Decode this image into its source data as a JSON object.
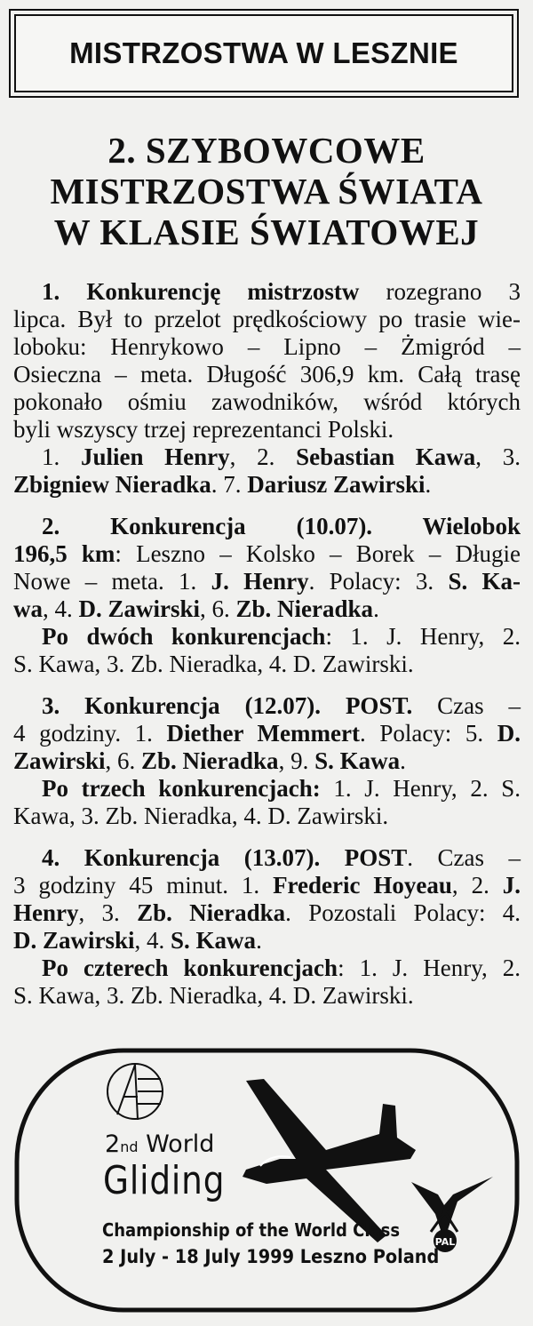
{
  "header": {
    "title": "MISTRZOSTWA W LESZNIE"
  },
  "headline": [
    "2. SZYBOWCOWE",
    "MISTRZOSTWA ŚWIATA",
    "W KLASIE ŚWIATOWEJ"
  ],
  "sections": [
    {
      "lines": [
        {
          "ind": true,
          "runs": [
            {
              "t": "1. Konkurencję mistrzostw",
              "b": true
            },
            {
              "t": " rozegrano 3"
            }
          ]
        },
        {
          "runs": [
            {
              "t": "lipca. Był to przelot prędkościowy po trasie wie-"
            }
          ]
        },
        {
          "runs": [
            {
              "t": "loboku: Henrykowo – Lipno – Żmigród –"
            }
          ]
        },
        {
          "runs": [
            {
              "t": "Osieczna – meta. Długość 306,9 km. Całą trasę"
            }
          ]
        },
        {
          "runs": [
            {
              "t": "pokonało ośmiu zawodników, wśród których"
            }
          ]
        },
        {
          "last": true,
          "runs": [
            {
              "t": "byli wszyscy trzej reprezentanci Polski."
            }
          ]
        },
        {
          "ind": true,
          "runs": [
            {
              "t": "1. "
            },
            {
              "t": "Julien Henry",
              "b": true
            },
            {
              "t": ", 2. "
            },
            {
              "t": "Sebastian Kawa",
              "b": true
            },
            {
              "t": ", 3."
            }
          ]
        },
        {
          "last": true,
          "runs": [
            {
              "t": "Zbigniew Nieradka",
              "b": true
            },
            {
              "t": ". 7. "
            },
            {
              "t": "Dariusz Zawirski",
              "b": true
            },
            {
              "t": "."
            }
          ]
        }
      ]
    },
    {
      "lines": [
        {
          "ind": true,
          "runs": [
            {
              "t": "2. Konkurencja (10.07). Wielobok",
              "b": true
            }
          ]
        },
        {
          "runs": [
            {
              "t": "196,5 km",
              "b": true
            },
            {
              "t": ": Leszno – Kolsko – Borek – Długie"
            }
          ]
        },
        {
          "runs": [
            {
              "t": "Nowe – meta. 1. "
            },
            {
              "t": "J. Henry",
              "b": true
            },
            {
              "t": ". Polacy: 3. "
            },
            {
              "t": "S. Ka-",
              "b": true
            }
          ]
        },
        {
          "last": true,
          "runs": [
            {
              "t": "wa",
              "b": true
            },
            {
              "t": ", 4. "
            },
            {
              "t": "D. Zawirski",
              "b": true
            },
            {
              "t": ", 6. "
            },
            {
              "t": "Zb. Nieradka",
              "b": true
            },
            {
              "t": "."
            }
          ]
        },
        {
          "ind": true,
          "runs": [
            {
              "t": "Po dwóch konkurencjach",
              "b": true
            },
            {
              "t": ": 1. J. Henry, 2."
            }
          ]
        },
        {
          "last": true,
          "runs": [
            {
              "t": "S. Kawa, 3. Zb. Nieradka, 4. D. Zawirski."
            }
          ]
        }
      ]
    },
    {
      "lines": [
        {
          "ind": true,
          "runs": [
            {
              "t": "3. Konkurencja (12.07). POST.",
              "b": true
            },
            {
              "t": " Czas –"
            }
          ]
        },
        {
          "runs": [
            {
              "t": "4 godziny. 1. "
            },
            {
              "t": "Diether Memmert",
              "b": true
            },
            {
              "t": ". Polacy: 5. "
            },
            {
              "t": "D.",
              "b": true
            }
          ]
        },
        {
          "last": true,
          "runs": [
            {
              "t": "Zawirski",
              "b": true
            },
            {
              "t": ", 6. "
            },
            {
              "t": "Zb. Nieradka",
              "b": true
            },
            {
              "t": ", 9. "
            },
            {
              "t": "S. Kawa",
              "b": true
            },
            {
              "t": "."
            }
          ]
        },
        {
          "ind": true,
          "runs": [
            {
              "t": "Po trzech konkurencjach:",
              "b": true
            },
            {
              "t": " 1. J. Henry, 2. S."
            }
          ]
        },
        {
          "last": true,
          "runs": [
            {
              "t": "Kawa, 3. Zb. Nieradka, 4. D. Zawirski."
            }
          ]
        }
      ]
    },
    {
      "lines": [
        {
          "ind": true,
          "runs": [
            {
              "t": "4. Konkurencja (13.07). POST",
              "b": true
            },
            {
              "t": ". Czas –"
            }
          ]
        },
        {
          "runs": [
            {
              "t": "3 godziny 45 minut. 1. "
            },
            {
              "t": "Frederic Hoyeau",
              "b": true
            },
            {
              "t": ", 2. "
            },
            {
              "t": "J.",
              "b": true
            }
          ]
        },
        {
          "runs": [
            {
              "t": "Henry",
              "b": true
            },
            {
              "t": ", 3. "
            },
            {
              "t": "Zb. Nieradka",
              "b": true
            },
            {
              "t": ". Pozostali Polacy: 4."
            }
          ]
        },
        {
          "last": true,
          "runs": [
            {
              "t": "D. Zawirski",
              "b": true
            },
            {
              "t": ", 4. "
            },
            {
              "t": "S. Kawa",
              "b": true
            },
            {
              "t": "."
            }
          ]
        },
        {
          "ind": true,
          "runs": [
            {
              "t": "Po czterech konkurencjach",
              "b": true
            },
            {
              "t": ": 1. J. Henry, 2."
            }
          ]
        },
        {
          "last": true,
          "runs": [
            {
              "t": "S. Kawa, 3. Zb. Nieradka, 4. D. Zawirski."
            }
          ]
        }
      ]
    }
  ],
  "stamp": {
    "ordinal_number": "2",
    "ordinal_suffix": "nd",
    "world": " World",
    "gliding": "Gliding",
    "championship": "Championship of the World Class",
    "dates": "2 July - 18 July 1999 Leszno Poland",
    "pal_logo_text": "PAL"
  }
}
